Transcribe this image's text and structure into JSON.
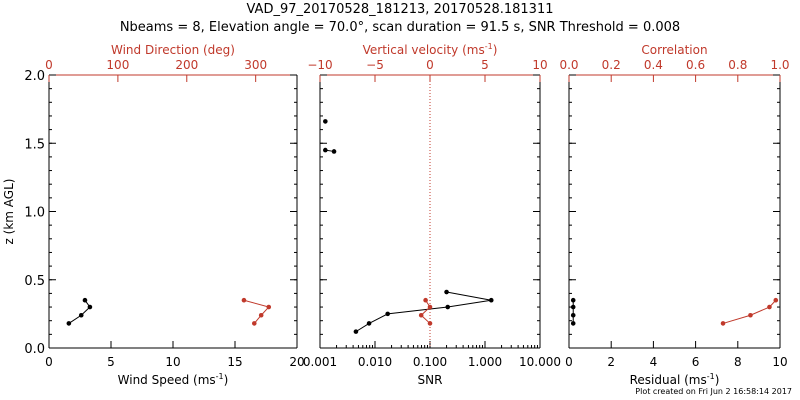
{
  "header": {
    "title_line1": "VAD_97_20170528_181213, 20170528.181311",
    "title_line2": "Nbeams = 8, Elevation angle = 70.0°, scan duration = 91.5 s, SNR Threshold = 0.008"
  },
  "footer": {
    "plot_created": "Plot created on Fri Jun  2 16:58:14 2017"
  },
  "colors": {
    "primary": "#000000",
    "secondary": "#c0392b"
  },
  "chart_data": [
    {
      "type": "line",
      "panel": "wind",
      "ylabel": "z (km AGL)",
      "ylim": [
        0,
        2.0
      ],
      "y_ticks": [
        "0.0",
        "0.5",
        "1.0",
        "1.5",
        "2.0"
      ],
      "xlabel_bottom": "Wind Speed (ms",
      "xlabel_bottom_sup": "-1",
      "xlabel_bottom_tail": ")",
      "xlim_bottom": [
        0,
        20
      ],
      "x_ticks_bottom": [
        "0",
        "5",
        "10",
        "15",
        "20"
      ],
      "xlabel_top": "Wind Direction (deg)",
      "xlim_top": [
        0,
        360
      ],
      "x_ticks_top": [
        "0",
        "100",
        "200",
        "300"
      ],
      "series": [
        {
          "axis": "bottom",
          "color": "#000000",
          "points": [
            [
              1.6,
              0.18
            ],
            [
              2.6,
              0.24
            ],
            [
              3.3,
              0.3
            ],
            [
              2.9,
              0.35
            ]
          ]
        },
        {
          "axis": "top",
          "color": "#c0392b",
          "points": [
            [
              298,
              0.18
            ],
            [
              308,
              0.24
            ],
            [
              319,
              0.3
            ],
            [
              283,
              0.35
            ]
          ]
        }
      ]
    },
    {
      "type": "line",
      "panel": "snr",
      "ylim": [
        0,
        2.0
      ],
      "xlabel_bottom": "SNR",
      "xscale_bottom": "log",
      "xlim_bottom": [
        0.001,
        10
      ],
      "x_ticks_bottom": [
        "0.001",
        "0.010",
        "0.100",
        "1.000",
        "10.000"
      ],
      "xlabel_top": "Vertical velocity (ms",
      "xlabel_top_sup": "-1",
      "xlabel_top_tail": ")",
      "xlim_top": [
        -10,
        10
      ],
      "x_ticks_top": [
        "−10",
        "−5",
        "0",
        "5",
        "10"
      ],
      "vertical_reference_line_top_x": 0,
      "series": [
        {
          "axis": "bottom",
          "color": "#000000",
          "points": [
            [
              0.0045,
              0.12
            ],
            [
              0.0078,
              0.18
            ],
            [
              0.017,
              0.25
            ],
            [
              0.21,
              0.3
            ],
            [
              1.3,
              0.35
            ],
            [
              0.2,
              0.41
            ]
          ]
        },
        {
          "axis": "bottom",
          "color": "#000000",
          "points": [
            [
              0.00125,
              1.45
            ],
            [
              0.0018,
              1.44
            ]
          ]
        },
        {
          "axis": "bottom",
          "color": "#000000",
          "points": [
            [
              0.00125,
              1.66
            ]
          ]
        },
        {
          "axis": "top",
          "color": "#c0392b",
          "points": [
            [
              0.0,
              0.18
            ],
            [
              -0.8,
              0.24
            ],
            [
              0.0,
              0.3
            ],
            [
              -0.4,
              0.35
            ]
          ]
        }
      ]
    },
    {
      "type": "line",
      "panel": "residual",
      "ylim": [
        0,
        2.0
      ],
      "xlabel_bottom": "Residual (ms",
      "xlabel_bottom_sup": "-1",
      "xlabel_bottom_tail": ")",
      "xlim_bottom": [
        0,
        10
      ],
      "x_ticks_bottom": [
        "0",
        "2",
        "4",
        "6",
        "8",
        "10"
      ],
      "xlabel_top": "Correlation",
      "xlim_top": [
        0,
        1.0
      ],
      "x_ticks_top": [
        "0.0",
        "0.2",
        "0.4",
        "0.6",
        "0.8",
        "1.0"
      ],
      "series": [
        {
          "axis": "bottom",
          "color": "#000000",
          "points": [
            [
              0.2,
              0.18
            ],
            [
              0.2,
              0.24
            ],
            [
              0.2,
              0.3
            ],
            [
              0.2,
              0.35
            ]
          ]
        },
        {
          "axis": "top",
          "color": "#c0392b",
          "points": [
            [
              0.73,
              0.18
            ],
            [
              0.86,
              0.24
            ],
            [
              0.95,
              0.3
            ],
            [
              0.98,
              0.35
            ]
          ]
        }
      ]
    }
  ]
}
